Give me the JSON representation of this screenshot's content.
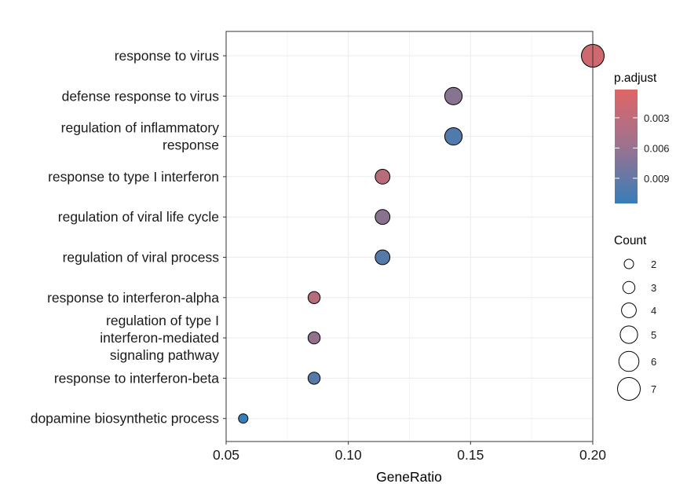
{
  "chart_data": {
    "type": "scatter",
    "title": "",
    "xlabel": "GeneRatio",
    "ylabel": "",
    "xlim": [
      0.05,
      0.2
    ],
    "x_ticks": [
      0.05,
      0.1,
      0.15,
      0.2
    ],
    "x_tick_labels": [
      "0.05",
      "0.10",
      "0.15",
      "0.20"
    ],
    "grid": true,
    "categories": [
      [
        "response to virus"
      ],
      [
        "defense response to virus"
      ],
      [
        "regulation of inflammatory",
        "response"
      ],
      [
        "response to type I interferon"
      ],
      [
        "regulation of viral life cycle"
      ],
      [
        "regulation of viral process"
      ],
      [
        "response to interferon-alpha"
      ],
      [
        "regulation of type I",
        "interferon-mediated",
        "signaling pathway"
      ],
      [
        "response to interferon-beta"
      ],
      [
        "dopamine biosynthetic process"
      ]
    ],
    "points": [
      {
        "x": 0.2,
        "count": 7,
        "p_adjust": 0.0014
      },
      {
        "x": 0.143,
        "count": 5,
        "p_adjust": 0.0061
      },
      {
        "x": 0.143,
        "count": 5,
        "p_adjust": 0.0098
      },
      {
        "x": 0.114,
        "count": 4,
        "p_adjust": 0.003
      },
      {
        "x": 0.114,
        "count": 4,
        "p_adjust": 0.006
      },
      {
        "x": 0.114,
        "count": 4,
        "p_adjust": 0.0095
      },
      {
        "x": 0.086,
        "count": 3,
        "p_adjust": 0.003
      },
      {
        "x": 0.086,
        "count": 3,
        "p_adjust": 0.0055
      },
      {
        "x": 0.086,
        "count": 3,
        "p_adjust": 0.0095
      },
      {
        "x": 0.057,
        "count": 2,
        "p_adjust": 0.012
      }
    ],
    "legend_color": {
      "title": "p.adjust",
      "placement": "right",
      "ticks": [
        0.003,
        0.006,
        0.009
      ],
      "tick_labels": [
        "0.003",
        "0.006",
        "0.009"
      ],
      "range": [
        0.0002,
        0.0115
      ],
      "low_color": "#E06666",
      "high_color": "#377EB8"
    },
    "legend_size": {
      "title": "Count",
      "placement": "right",
      "values": [
        2,
        3,
        4,
        5,
        6,
        7
      ],
      "labels": [
        "2",
        "3",
        "4",
        "5",
        "6",
        "7"
      ]
    }
  }
}
